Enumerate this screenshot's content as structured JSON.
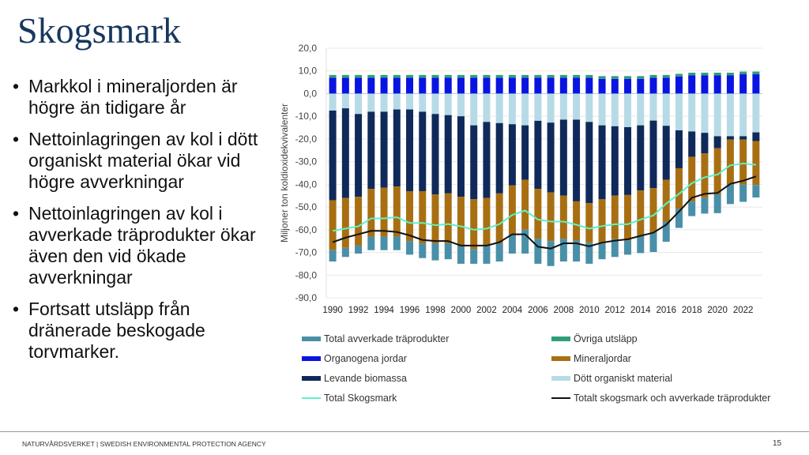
{
  "slide": {
    "title": "Skogsmark",
    "bullets": [
      "Markkol i mineraljorden är högre än tidigare år",
      "Nettoinlagringen av kol i dött organiskt material ökar vid högre avverkningar",
      "Nettoinlagringen av kol i avverkade träprodukter ökar även den vid ökade avverkningar",
      "Fortsatt utsläpp från dränerade beskogade torvmarker."
    ],
    "footer": "NATURVÅRDSVERKET | SWEDISH ENVIRONMENTAL PROTECTION AGENCY",
    "page_number": "15"
  },
  "chart_data": {
    "type": "bar",
    "stacked": true,
    "title": "",
    "xlabel": "",
    "ylabel": "Miljoner ton koldioxidekvivalenter",
    "ylim": [
      -90,
      20
    ],
    "yticks": [
      "20,0",
      "10,0",
      "0,0",
      "-10,0",
      "-20,0",
      "-30,0",
      "-40,0",
      "-50,0",
      "-60,0",
      "-70,0",
      "-80,0",
      "-90,0"
    ],
    "ytick_values": [
      20,
      10,
      0,
      -10,
      -20,
      -30,
      -40,
      -50,
      -60,
      -70,
      -80,
      -90
    ],
    "grid": true,
    "legend_position": "bottom",
    "categories": [
      1990,
      1991,
      1992,
      1993,
      1994,
      1995,
      1996,
      1997,
      1998,
      1999,
      2000,
      2001,
      2002,
      2003,
      2004,
      2005,
      2006,
      2007,
      2008,
      2009,
      2010,
      2011,
      2012,
      2013,
      2014,
      2015,
      2016,
      2017,
      2018,
      2019,
      2020,
      2021,
      2022,
      2023
    ],
    "xtick_labels": [
      "1990",
      "1992",
      "1994",
      "1996",
      "1998",
      "2000",
      "2002",
      "2004",
      "2006",
      "2008",
      "2010",
      "2012",
      "2014",
      "2016",
      "2018",
      "2020",
      "2022"
    ],
    "series": [
      {
        "name": "Organogena jordar",
        "kind": "bar",
        "color": "#0a14e0",
        "values": [
          7,
          7,
          7,
          7,
          7,
          7,
          7,
          7,
          7,
          7,
          7,
          7,
          7,
          7,
          7,
          7,
          7,
          7,
          7,
          7,
          7,
          6.5,
          6.5,
          6.5,
          6.5,
          7,
          7,
          7.5,
          8,
          8,
          8,
          8,
          8.5,
          8.5
        ]
      },
      {
        "name": "Övriga utsläpp",
        "kind": "bar",
        "color": "#2e9e7a",
        "values": [
          1.2,
          1.2,
          1.2,
          1.2,
          1.2,
          1.2,
          1.2,
          1.2,
          1.2,
          1.2,
          1.2,
          1.2,
          1.2,
          1.2,
          1.2,
          1.2,
          1.2,
          1.2,
          1.2,
          1.2,
          1.2,
          1.2,
          1.2,
          1.2,
          1.2,
          1.2,
          1.2,
          1.2,
          1.2,
          1.2,
          1.2,
          1.2,
          1.2,
          1.2
        ]
      },
      {
        "name": "Dött organiskt material",
        "kind": "bar",
        "color": "#b7dbe6",
        "values": [
          -7.5,
          -6.5,
          -9,
          -8,
          -8,
          -7,
          -7,
          -8,
          -9,
          -9.5,
          -10,
          -14,
          -12.5,
          -13,
          -13.5,
          -14,
          -12,
          -12.8,
          -11.5,
          -11.5,
          -12.5,
          -14,
          -14.4,
          -14.8,
          -14,
          -11.9,
          -14.2,
          -16.2,
          -16.7,
          -17.3,
          -18.8,
          -18.8,
          -18.8,
          -17.1
        ]
      },
      {
        "name": "Levande biomassa",
        "kind": "bar",
        "color": "#0f2a5a",
        "values": [
          -39.5,
          -39.5,
          -36.5,
          -34,
          -33.5,
          -34,
          -36,
          -35,
          -35.5,
          -34.5,
          -35.5,
          -32.5,
          -33.5,
          -31,
          -27,
          -24,
          -30,
          -30.8,
          -33.5,
          -36,
          -35.8,
          -32.6,
          -30.6,
          -29.9,
          -28.7,
          -29.8,
          -23.8,
          -16.7,
          -11.2,
          -9.1,
          -5.3,
          -1.5,
          -1.5,
          -3.8
        ]
      },
      {
        "name": "Mineraljordar",
        "kind": "bar",
        "color": "#a86f12",
        "values": [
          -22,
          -22,
          -21.5,
          -21,
          -21.5,
          -22,
          -22,
          -23,
          -21.5,
          -22,
          -21.5,
          -22,
          -21,
          -22,
          -21.5,
          -22,
          -22,
          -21.4,
          -19,
          -17.3,
          -17.4,
          -19.4,
          -19.2,
          -20.1,
          -20.3,
          -19.6,
          -18.6,
          -17.9,
          -19.7,
          -19.5,
          -20.3,
          -19.8,
          -19.8,
          -19.4
        ]
      },
      {
        "name": "Total avverkade träprodukter",
        "kind": "bar",
        "color": "#4a8fa8",
        "values": [
          -5,
          -4,
          -3.5,
          -6,
          -6,
          -6,
          -6,
          -6.5,
          -7.5,
          -7,
          -8,
          -6.5,
          -8,
          -8,
          -8.5,
          -10.5,
          -11,
          -11,
          -10,
          -9.2,
          -9.3,
          -7,
          -7.8,
          -6.2,
          -7.3,
          -8.5,
          -8.7,
          -8.4,
          -6.4,
          -7,
          -8.3,
          -8.6,
          -7.6,
          -5.5
        ]
      },
      {
        "name": "Total Skogsmark",
        "kind": "line",
        "color": "#5ef0c8",
        "values": [
          -60.5,
          -59.5,
          -58.5,
          -55,
          -55,
          -54.5,
          -57,
          -57,
          -58,
          -57.5,
          -58.5,
          -60,
          -59.5,
          -57.5,
          -53.5,
          -51.5,
          -55.5,
          -56.4,
          -56.4,
          -57.8,
          -59.5,
          -58.4,
          -57.6,
          -57.6,
          -55.5,
          -53.7,
          -48.5,
          -44.2,
          -39.5,
          -36.9,
          -35.7,
          -31.6,
          -30.8,
          -31.4
        ]
      },
      {
        "name": "Totalt skogsmark och avverkade träprodukter",
        "kind": "line",
        "color": "#111111",
        "values": [
          -65.5,
          -63.5,
          -62,
          -60.5,
          -60.5,
          -61,
          -62.5,
          -64.5,
          -65,
          -65,
          -67,
          -67,
          -67,
          -65.5,
          -62,
          -62,
          -67.5,
          -68.3,
          -66,
          -66,
          -67.3,
          -65.7,
          -64.8,
          -64.2,
          -62.7,
          -61.3,
          -57.8,
          -52,
          -45.9,
          -44.2,
          -43.8,
          -39.8,
          -38.4,
          -36.5
        ]
      }
    ],
    "legend_order": [
      "Total avverkade träprodukter",
      "Övriga utsläpp",
      "Organogena jordar",
      "Mineraljordar",
      "Levande biomassa",
      "Dött organiskt material",
      "Total Skogsmark",
      "Totalt skogsmark och avverkade träprodukter"
    ]
  }
}
